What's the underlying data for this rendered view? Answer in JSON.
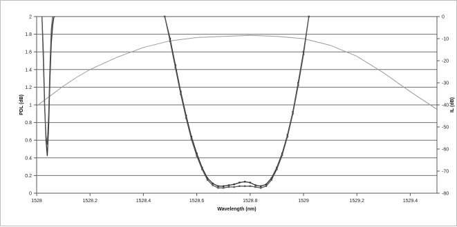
{
  "chart_data": {
    "type": "line",
    "title": "",
    "xlabel": "Wavelength (nm)",
    "ylabel_left": "PDL (dB)",
    "ylabel_right": "IL (dB)",
    "xlim": [
      1528.0,
      1529.5
    ],
    "ylim_left": [
      0,
      2
    ],
    "ylim_right": [
      -80,
      0
    ],
    "x_ticks": [
      1528,
      1528.2,
      1528.4,
      1528.6,
      1528.8,
      1529,
      1529.2,
      1529.4
    ],
    "x_tick_labels": [
      "1528",
      "1528.2",
      "1528.4",
      "1528.6",
      "1528.8",
      "1529",
      "1529.2",
      "1529.4"
    ],
    "y_left_ticks": [
      0,
      0.2,
      0.4,
      0.6,
      0.8,
      1,
      1.2,
      1.4,
      1.6,
      1.8,
      2
    ],
    "y_left_tick_labels": [
      "0",
      "0.2",
      "0.4",
      "0.6",
      "0.8",
      "1",
      "1.2",
      "1.4",
      "1.6",
      "1.8",
      "2"
    ],
    "y_right_ticks": [
      0,
      -10,
      -20,
      -30,
      -40,
      -50,
      -60,
      -70,
      -80
    ],
    "y_right_tick_labels": [
      "0",
      "-10",
      "-20",
      "-30",
      "-40",
      "-50",
      "-60",
      "-70",
      "-80"
    ],
    "grid": "horizontal",
    "legend": "none",
    "series": [
      {
        "axis": "right",
        "style": "thin-gray",
        "color": "#9a9a9a",
        "x": [
          1528.0,
          1528.05,
          1528.1,
          1528.15,
          1528.2,
          1528.3,
          1528.4,
          1528.5,
          1528.6,
          1528.7,
          1528.8,
          1528.9,
          1529.0,
          1529.1,
          1529.2,
          1529.3,
          1529.4,
          1529.5
        ],
        "y": [
          -40.5,
          -36,
          -31.5,
          -27.5,
          -24,
          -18.5,
          -14,
          -11,
          -9.5,
          -9,
          -8.5,
          -9,
          -10,
          -13,
          -18,
          -25.5,
          -34,
          -42
        ]
      },
      {
        "axis": "left",
        "style": "dark-with-markers",
        "color": "#333333",
        "x": [
          1528.48,
          1528.5,
          1528.52,
          1528.54,
          1528.56,
          1528.58,
          1528.6,
          1528.62,
          1528.64,
          1528.66,
          1528.68,
          1528.7,
          1528.72,
          1528.74,
          1528.76,
          1528.78,
          1528.8,
          1528.82,
          1528.84,
          1528.86,
          1528.88,
          1528.9,
          1528.92,
          1528.94,
          1528.96,
          1528.98,
          1529.0,
          1529.02
        ],
        "y": [
          2.0,
          1.75,
          1.45,
          1.15,
          0.88,
          0.64,
          0.45,
          0.29,
          0.17,
          0.11,
          0.08,
          0.08,
          0.09,
          0.1,
          0.12,
          0.13,
          0.12,
          0.09,
          0.08,
          0.1,
          0.17,
          0.29,
          0.45,
          0.66,
          0.92,
          1.25,
          1.6,
          2.0
        ]
      },
      {
        "axis": "left",
        "style": "dark-with-markers",
        "color": "#555555",
        "x": [
          1528.48,
          1528.5,
          1528.52,
          1528.54,
          1528.56,
          1528.58,
          1528.6,
          1528.62,
          1528.64,
          1528.66,
          1528.68,
          1528.7,
          1528.72,
          1528.74,
          1528.76,
          1528.78,
          1528.8,
          1528.82,
          1528.84,
          1528.86,
          1528.88,
          1528.9,
          1528.92,
          1528.94,
          1528.96,
          1528.98,
          1529.0,
          1529.02
        ],
        "y": [
          2.0,
          1.72,
          1.42,
          1.12,
          0.85,
          0.61,
          0.42,
          0.27,
          0.15,
          0.09,
          0.06,
          0.06,
          0.07,
          0.07,
          0.08,
          0.08,
          0.08,
          0.07,
          0.06,
          0.08,
          0.15,
          0.27,
          0.43,
          0.64,
          0.9,
          1.22,
          1.57,
          2.0
        ]
      },
      {
        "axis": "left",
        "style": "dark",
        "color": "#333333",
        "x": [
          1528.02,
          1528.025,
          1528.03,
          1528.035,
          1528.04,
          1528.045,
          1528.05,
          1528.055,
          1528.06,
          1528.065,
          1528.07
        ],
        "y": [
          2.0,
          1.6,
          1.0,
          0.6,
          0.42,
          0.75,
          1.3,
          1.7,
          1.9,
          2.0,
          2.0
        ]
      },
      {
        "axis": "left",
        "style": "dark",
        "color": "#555555",
        "x": [
          1528.02,
          1528.025,
          1528.03,
          1528.035,
          1528.04,
          1528.045,
          1528.05,
          1528.055,
          1528.06
        ],
        "y": [
          2.0,
          1.5,
          0.95,
          0.65,
          0.55,
          0.9,
          1.45,
          1.85,
          2.0
        ]
      }
    ]
  }
}
